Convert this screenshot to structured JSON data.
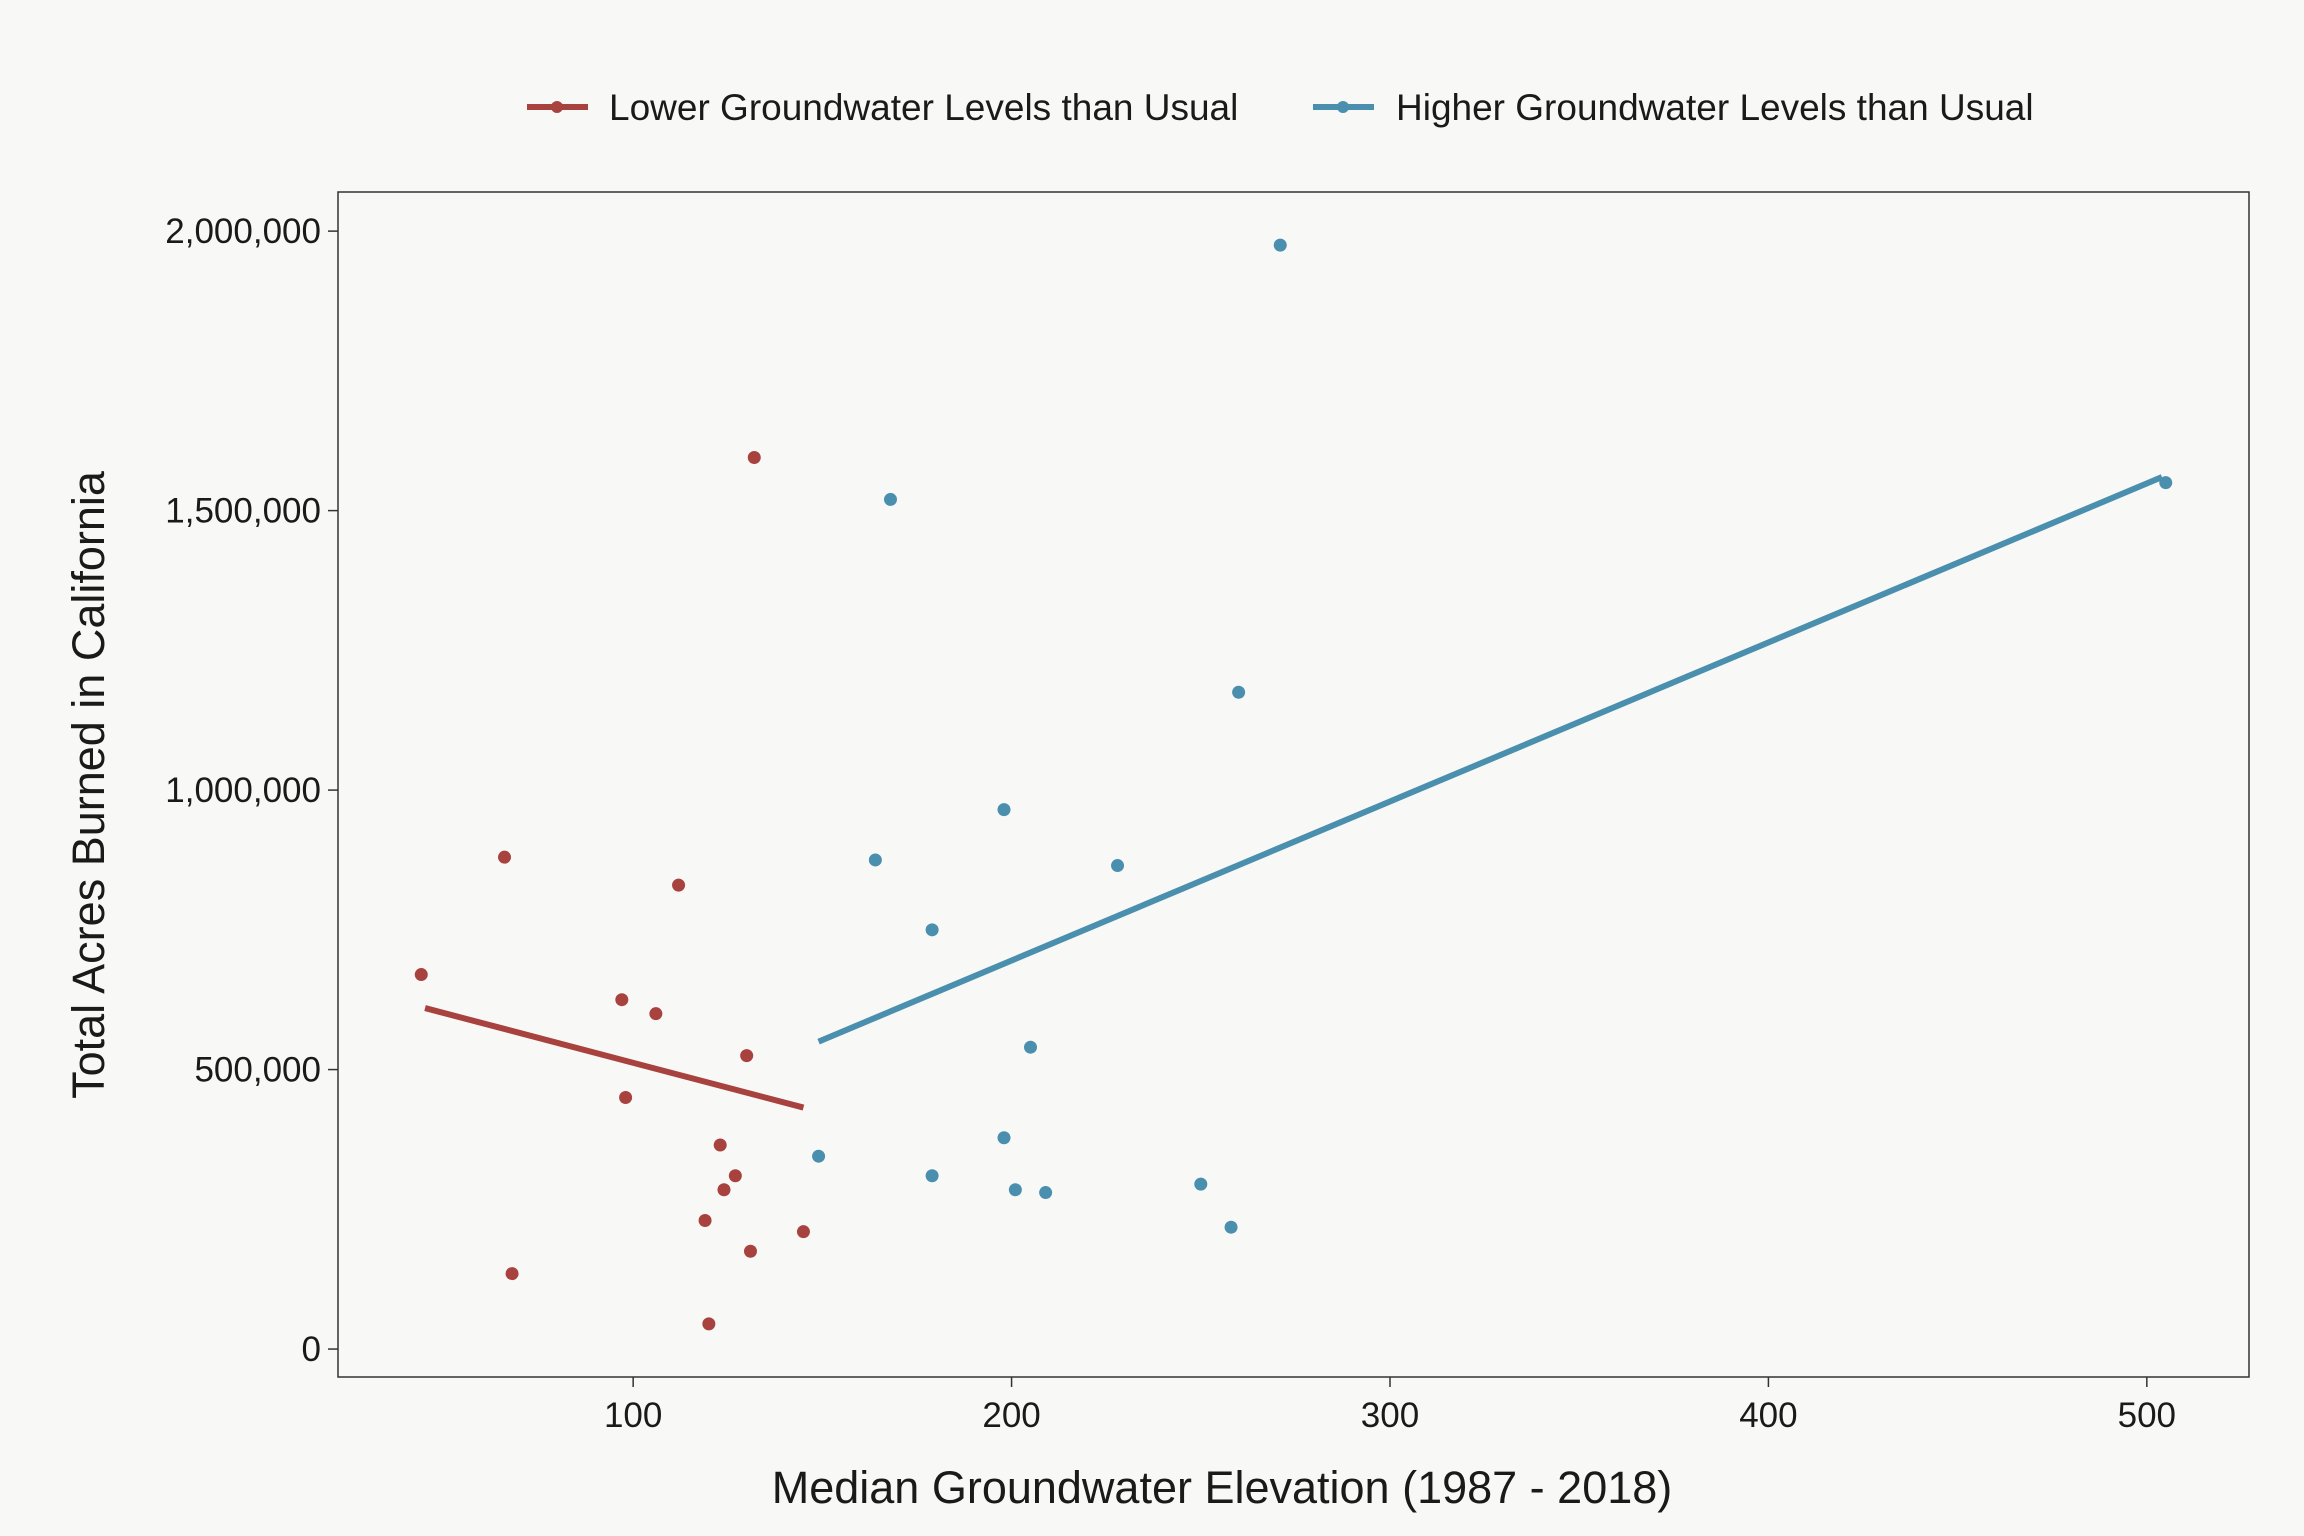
{
  "chart_data": {
    "type": "scatter",
    "title": "",
    "xlabel": "Median Groundwater Elevation (1987 - 2018)",
    "ylabel": "Total Acres Burned in California",
    "xlim": [
      22,
      527
    ],
    "ylim": [
      -50000,
      2070000
    ],
    "x_ticks": [
      100,
      200,
      300,
      400,
      500
    ],
    "x_tick_labels": [
      "100",
      "200",
      "300",
      "400",
      "500"
    ],
    "y_ticks": [
      0,
      500000,
      1000000,
      1500000,
      2000000
    ],
    "y_tick_labels": [
      "0",
      "500,000",
      "1,000,000",
      "1,500,000",
      "2,000,000"
    ],
    "grid": false,
    "legend_position": "top",
    "series": [
      {
        "name": "Lower Groundwater Levels than Usual",
        "color": "#a8423f",
        "points": [
          {
            "x": 44,
            "y": 670000
          },
          {
            "x": 66,
            "y": 880000
          },
          {
            "x": 68,
            "y": 135000
          },
          {
            "x": 97,
            "y": 625000
          },
          {
            "x": 98,
            "y": 450000
          },
          {
            "x": 106,
            "y": 600000
          },
          {
            "x": 112,
            "y": 830000
          },
          {
            "x": 119,
            "y": 230000
          },
          {
            "x": 120,
            "y": 45000
          },
          {
            "x": 123,
            "y": 365000
          },
          {
            "x": 124,
            "y": 285000
          },
          {
            "x": 127,
            "y": 310000
          },
          {
            "x": 130,
            "y": 525000
          },
          {
            "x": 131,
            "y": 175000
          },
          {
            "x": 132,
            "y": 1595000
          },
          {
            "x": 145,
            "y": 210000
          }
        ],
        "trend": {
          "x": [
            45,
            145
          ],
          "y": [
            610000,
            432000
          ]
        }
      },
      {
        "name": "Higher Groundwater Levels than Usual",
        "color": "#4a8fad",
        "points": [
          {
            "x": 149,
            "y": 345000
          },
          {
            "x": 164,
            "y": 875000
          },
          {
            "x": 168,
            "y": 1520000
          },
          {
            "x": 179,
            "y": 750000
          },
          {
            "x": 179,
            "y": 310000
          },
          {
            "x": 198,
            "y": 965000
          },
          {
            "x": 198,
            "y": 378000
          },
          {
            "x": 201,
            "y": 285000
          },
          {
            "x": 205,
            "y": 540000
          },
          {
            "x": 209,
            "y": 280000
          },
          {
            "x": 228,
            "y": 865000
          },
          {
            "x": 250,
            "y": 295000
          },
          {
            "x": 258,
            "y": 218000
          },
          {
            "x": 260,
            "y": 1175000
          },
          {
            "x": 271,
            "y": 1975000
          },
          {
            "x": 505,
            "y": 1550000
          }
        ],
        "trend": {
          "x": [
            149,
            504
          ],
          "y": [
            550000,
            1560000
          ]
        }
      }
    ]
  }
}
